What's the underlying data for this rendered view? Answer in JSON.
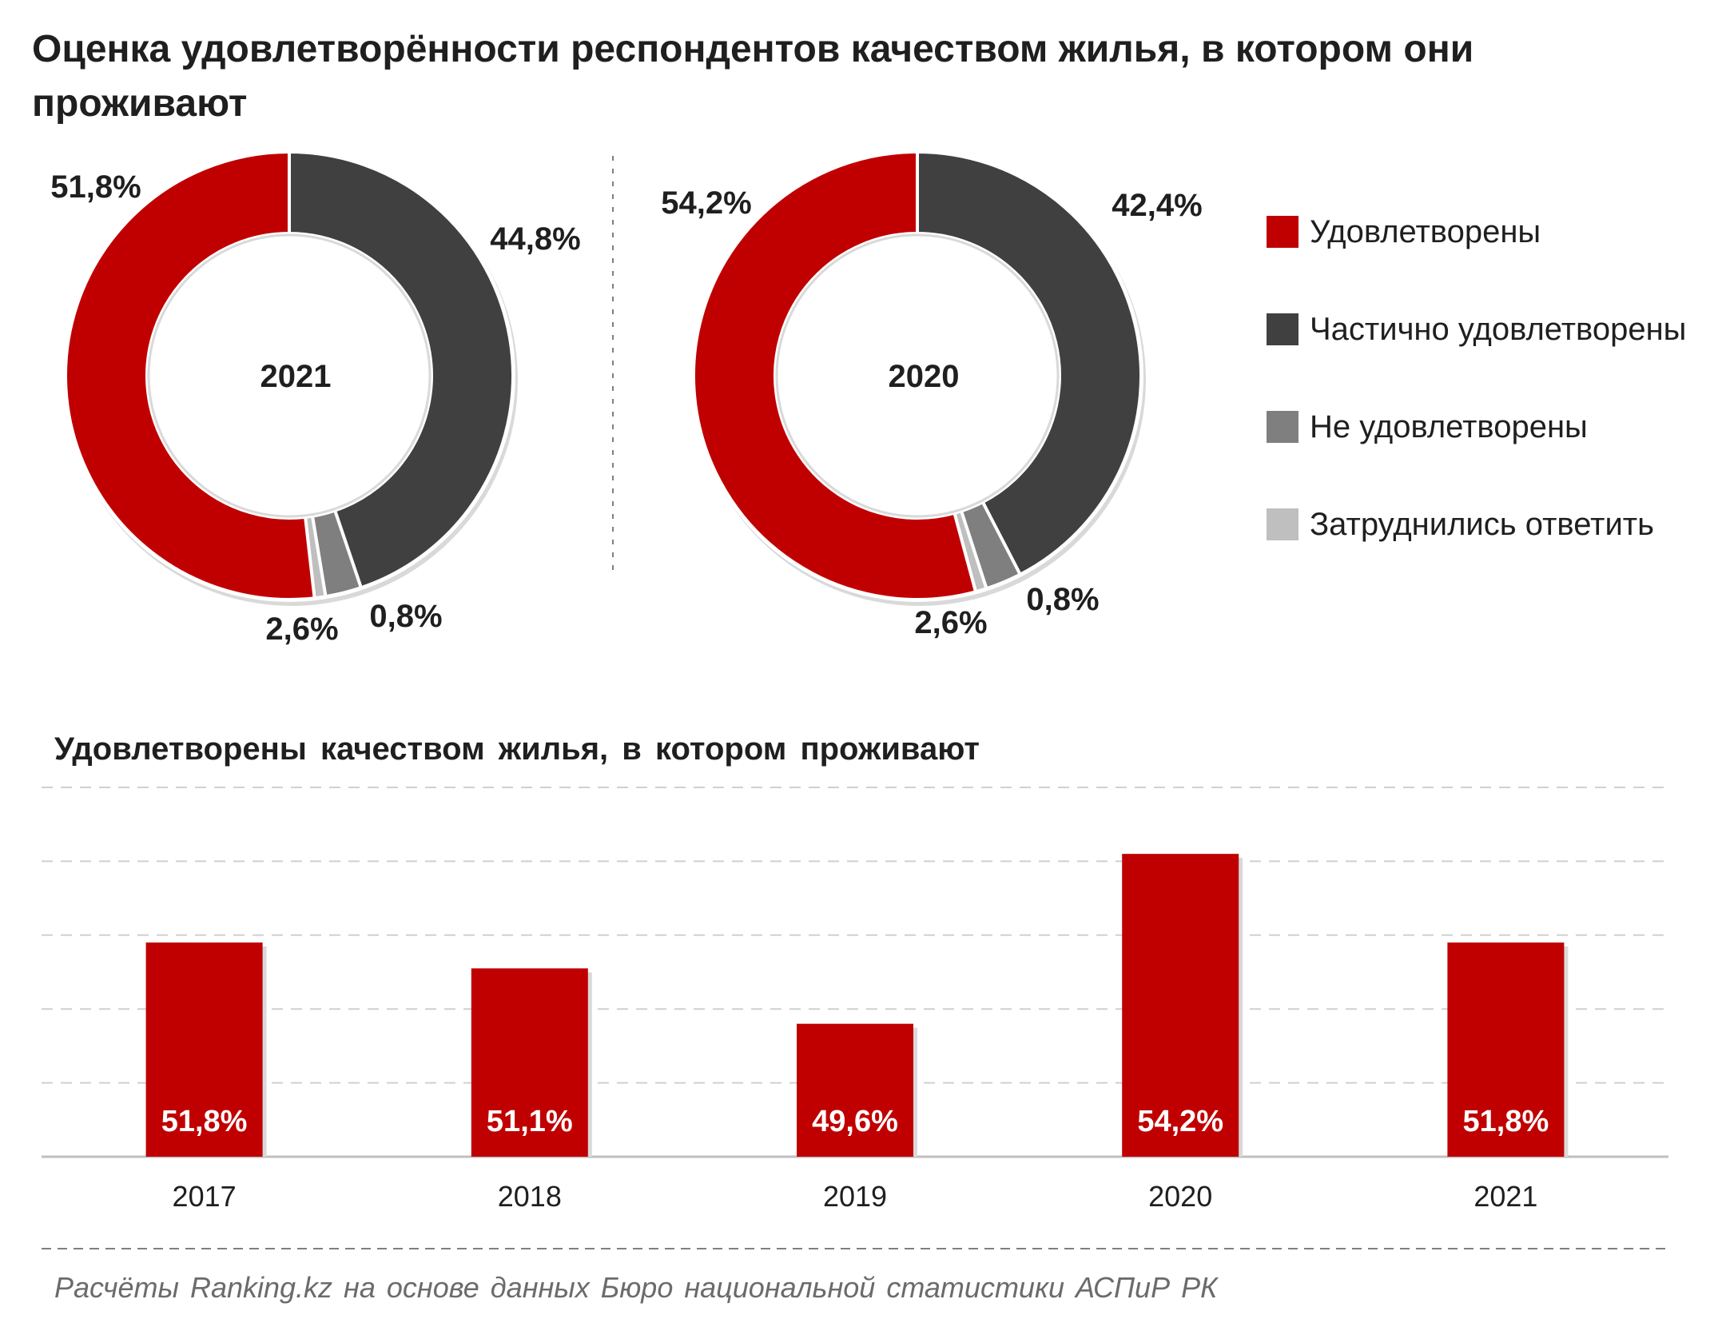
{
  "title": "Оценка удовлетворённости респондентов качеством жилья, в котором они проживают",
  "colors": {
    "satisfied": "#c00000",
    "partially": "#404040",
    "not_satisfied": "#7f7f7f",
    "hard_to_answer": "#bfbfbf"
  },
  "legend": [
    {
      "label": "Удовлетворены",
      "color": "#c00000"
    },
    {
      "label": "Частично удовлетворены",
      "color": "#404040"
    },
    {
      "label": "Не удовлетворены",
      "color": "#7f7f7f"
    },
    {
      "label": "Затруднились ответить",
      "color": "#bfbfbf"
    }
  ],
  "chart_data": [
    {
      "type": "pie",
      "variant": "donut",
      "center_label": "2021",
      "slices": [
        {
          "category": "Удовлетворены",
          "value": 51.8,
          "label": "51,8%"
        },
        {
          "category": "Частично удовлетворены",
          "value": 44.8,
          "label": "44,8%"
        },
        {
          "category": "Не удовлетворены",
          "value": 2.6,
          "label": "2,6%"
        },
        {
          "category": "Затруднились ответить",
          "value": 0.8,
          "label": "0,8%"
        }
      ]
    },
    {
      "type": "pie",
      "variant": "donut",
      "center_label": "2020",
      "slices": [
        {
          "category": "Удовлетворены",
          "value": 54.2,
          "label": "54,2%"
        },
        {
          "category": "Частично удовлетворены",
          "value": 42.4,
          "label": "42,4%"
        },
        {
          "category": "Не удовлетворены",
          "value": 2.6,
          "label": "2,6%"
        },
        {
          "category": "Затруднились ответить",
          "value": 0.8,
          "label": "0,8%"
        }
      ]
    },
    {
      "type": "bar",
      "title": "Удовлетворены  качеством  жилья, в котором  проживают",
      "categories": [
        "2017",
        "2018",
        "2019",
        "2020",
        "2021"
      ],
      "values": [
        51.8,
        51.1,
        49.6,
        54.2,
        51.8
      ],
      "value_labels": [
        "51,8%",
        "51,1%",
        "49,6%",
        "54,2%",
        "51,8%"
      ],
      "ylim": [
        46,
        56
      ],
      "grid": true
    }
  ],
  "source": "Расчёты Ranking.kz на основе данных  Бюро национальной  статистики АСПиР РК"
}
